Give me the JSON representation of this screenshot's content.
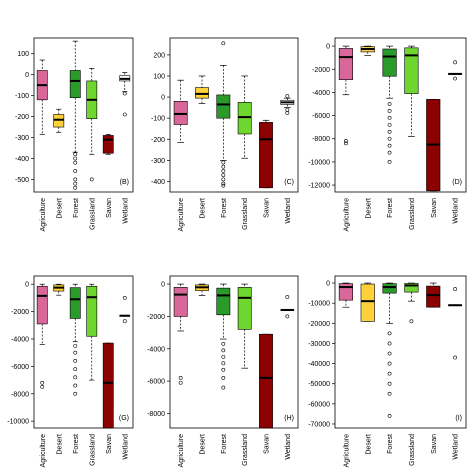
{
  "chart_data": [
    {
      "type": "boxplot",
      "label": "(B)",
      "categories": [
        "Agriculture",
        "Desert",
        "Forest",
        "Grassland",
        "Savan",
        "Wetland"
      ],
      "yticks": [
        100,
        0,
        -100,
        -200,
        -300,
        -400,
        -500
      ],
      "ylim": [
        -560,
        175
      ],
      "colors": [
        "#d9679a",
        "#ffd23a",
        "#2a9a2a",
        "#6ed62e",
        "#8b0000",
        "#ffffff"
      ],
      "series": [
        {
          "name": "Agriculture",
          "q1": -120,
          "median": -50,
          "q3": 20,
          "lo": -285,
          "hi": 70,
          "outliers": []
        },
        {
          "name": "Desert",
          "q1": -250,
          "median": -215,
          "q3": -190,
          "lo": -275,
          "hi": -165,
          "outliers": []
        },
        {
          "name": "Forest",
          "q1": -110,
          "median": -30,
          "q3": 20,
          "lo": -370,
          "hi": 160,
          "outliers": [
            -380,
            -400,
            -420,
            -460,
            -500,
            -520,
            -540
          ]
        },
        {
          "name": "Grassland",
          "q1": -210,
          "median": -120,
          "q3": -30,
          "lo": -380,
          "hi": 30,
          "outliers": [
            -500
          ]
        },
        {
          "name": "Savan",
          "q1": -375,
          "median": -310,
          "q3": -290,
          "lo": -380,
          "hi": -285,
          "outliers": []
        },
        {
          "name": "Wetland",
          "q1": -30,
          "median": -20,
          "q3": -5,
          "lo": -80,
          "hi": 10,
          "outliers": [
            -90,
            -190
          ]
        }
      ]
    },
    {
      "type": "boxplot",
      "label": "(C)",
      "categories": [
        "Agriculture",
        "Desert",
        "Forest",
        "Grassland",
        "Savan",
        "Wetland"
      ],
      "yticks": [
        200,
        100,
        0,
        -100,
        -200,
        -300,
        -400
      ],
      "ylim": [
        -450,
        280
      ],
      "colors": [
        "#d9679a",
        "#ffd23a",
        "#2a9a2a",
        "#6ed62e",
        "#8b0000",
        "#ffffff"
      ],
      "series": [
        {
          "name": "Agriculture",
          "q1": -130,
          "median": -80,
          "q3": -20,
          "lo": -215,
          "hi": 80,
          "outliers": []
        },
        {
          "name": "Desert",
          "q1": -5,
          "median": 15,
          "q3": 45,
          "lo": -30,
          "hi": 100,
          "outliers": []
        },
        {
          "name": "Forest",
          "q1": -100,
          "median": -35,
          "q3": 10,
          "lo": -300,
          "hi": 150,
          "outliers": [
            -310,
            -330,
            -350,
            -370,
            -390,
            -410,
            -420,
            255
          ]
        },
        {
          "name": "Grassland",
          "q1": -175,
          "median": -95,
          "q3": -25,
          "lo": -290,
          "hi": 100,
          "outliers": []
        },
        {
          "name": "Savan",
          "q1": -430,
          "median": -200,
          "q3": -120,
          "lo": -430,
          "hi": -110,
          "outliers": []
        },
        {
          "name": "Wetland",
          "q1": -35,
          "median": -25,
          "q3": -15,
          "lo": -50,
          "hi": -5,
          "outliers": [
            -60,
            -75,
            5
          ]
        }
      ]
    },
    {
      "type": "boxplot",
      "label": "(D)",
      "categories": [
        "Agriculture",
        "Desert",
        "Forest",
        "Grassland",
        "Savan",
        "Wetland"
      ],
      "yticks": [
        0,
        -2000,
        -4000,
        -6000,
        -8000,
        -10000,
        -12000
      ],
      "ylim": [
        -12600,
        700
      ],
      "colors": [
        "#d9679a",
        "#ffd23a",
        "#2a9a2a",
        "#6ed62e",
        "#8b0000",
        "#ffffff"
      ],
      "series": [
        {
          "name": "Agriculture",
          "q1": -2900,
          "median": -950,
          "q3": -200,
          "lo": -4200,
          "hi": 0,
          "outliers": [
            -8200,
            -8400
          ]
        },
        {
          "name": "Desert",
          "q1": -500,
          "median": -250,
          "q3": -50,
          "lo": -800,
          "hi": 0,
          "outliers": []
        },
        {
          "name": "Forest",
          "q1": -2600,
          "median": -900,
          "q3": -250,
          "lo": -4500,
          "hi": 0,
          "outliers": [
            -5000,
            -5600,
            -6200,
            -6800,
            -7400,
            -8000,
            -8600,
            -9200,
            -10000
          ]
        },
        {
          "name": "Grassland",
          "q1": -4100,
          "median": -800,
          "q3": -150,
          "lo": -7800,
          "hi": 0,
          "outliers": []
        },
        {
          "name": "Savan",
          "q1": -12500,
          "median": -8500,
          "q3": -4600,
          "lo": -12500,
          "hi": -4600,
          "outliers": []
        },
        {
          "name": "Wetland",
          "q1": -2400,
          "median": -2400,
          "q3": -2400,
          "lo": -2400,
          "hi": -2400,
          "outliers": [
            -1400,
            -2800
          ]
        }
      ]
    },
    {
      "type": "boxplot",
      "label": "(G)",
      "categories": [
        "Agriculture",
        "Desert",
        "Forest",
        "Grassland",
        "Savan",
        "Wetland"
      ],
      "yticks": [
        0,
        -2000,
        -4000,
        -6000,
        -8000,
        -10000
      ],
      "ylim": [
        -10500,
        600
      ],
      "colors": [
        "#d9679a",
        "#ffd23a",
        "#2a9a2a",
        "#6ed62e",
        "#8b0000",
        "#ffffff"
      ],
      "series": [
        {
          "name": "Agriculture",
          "q1": -2900,
          "median": -850,
          "q3": -150,
          "lo": -4400,
          "hi": 0,
          "outliers": [
            -7200,
            -7500
          ]
        },
        {
          "name": "Desert",
          "q1": -500,
          "median": -250,
          "q3": -50,
          "lo": -800,
          "hi": 0,
          "outliers": []
        },
        {
          "name": "Forest",
          "q1": -2500,
          "median": -1100,
          "q3": -250,
          "lo": -4200,
          "hi": 0,
          "outliers": [
            -4500,
            -5000,
            -5600,
            -6200,
            -6800,
            -7400,
            -8000
          ]
        },
        {
          "name": "Grassland",
          "q1": -3800,
          "median": -950,
          "q3": -150,
          "lo": -7000,
          "hi": 0,
          "outliers": []
        },
        {
          "name": "Savan",
          "q1": -10500,
          "median": -7200,
          "q3": -4300,
          "lo": -10500,
          "hi": -4300,
          "outliers": []
        },
        {
          "name": "Wetland",
          "q1": -2300,
          "median": -2300,
          "q3": -2300,
          "lo": -2300,
          "hi": -2300,
          "outliers": [
            -1000,
            -2700
          ]
        }
      ]
    },
    {
      "type": "boxplot",
      "label": "(H)",
      "categories": [
        "Agriculture",
        "Desert",
        "Forest",
        "Grassland",
        "Savan",
        "Wetland"
      ],
      "yticks": [
        0,
        -2000,
        -4000,
        -6000,
        -8000
      ],
      "ylim": [
        -8900,
        500
      ],
      "colors": [
        "#d9679a",
        "#ffd23a",
        "#2a9a2a",
        "#6ed62e",
        "#8b0000",
        "#ffffff"
      ],
      "series": [
        {
          "name": "Agriculture",
          "q1": -2000,
          "median": -650,
          "q3": -200,
          "lo": -2900,
          "hi": 0,
          "outliers": [
            -5800,
            -6100
          ]
        },
        {
          "name": "Desert",
          "q1": -400,
          "median": -200,
          "q3": -50,
          "lo": -700,
          "hi": 0,
          "outliers": []
        },
        {
          "name": "Forest",
          "q1": -1900,
          "median": -700,
          "q3": -250,
          "lo": -3400,
          "hi": 0,
          "outliers": [
            -3700,
            -4100,
            -4500,
            -4900,
            -5300,
            -5800,
            -6400
          ]
        },
        {
          "name": "Grassland",
          "q1": -2800,
          "median": -850,
          "q3": -200,
          "lo": -5200,
          "hi": 0,
          "outliers": []
        },
        {
          "name": "Savan",
          "q1": -8900,
          "median": -5800,
          "q3": -3100,
          "lo": -8900,
          "hi": -3100,
          "outliers": []
        },
        {
          "name": "Wetland",
          "q1": -1600,
          "median": -1600,
          "q3": -1600,
          "lo": -1600,
          "hi": -1600,
          "outliers": [
            -800,
            -2000
          ]
        }
      ]
    },
    {
      "type": "boxplot",
      "label": "(I)",
      "categories": [
        "Agriculture",
        "Desert",
        "Forest",
        "Grassland",
        "Savan",
        "Wetland"
      ],
      "yticks": [
        0,
        -10000,
        -20000,
        -30000,
        -40000,
        -50000,
        -60000,
        -70000
      ],
      "ylim": [
        -72000,
        3500
      ],
      "colors": [
        "#d9679a",
        "#ffd23a",
        "#2a9a2a",
        "#6ed62e",
        "#8b0000",
        "#ffffff"
      ],
      "series": [
        {
          "name": "Agriculture",
          "q1": -8500,
          "median": -2000,
          "q3": -300,
          "lo": -12000,
          "hi": 0,
          "outliers": []
        },
        {
          "name": "Desert",
          "q1": -19000,
          "median": -9000,
          "q3": -500,
          "lo": -19000,
          "hi": 0,
          "outliers": []
        },
        {
          "name": "Forest",
          "q1": -5000,
          "median": -2000,
          "q3": -300,
          "lo": -20000,
          "hi": 0,
          "outliers": [
            -25000,
            -30000,
            -35000,
            -40000,
            -45000,
            -50000,
            -55000,
            -66000
          ]
        },
        {
          "name": "Grassland",
          "q1": -4500,
          "median": -1200,
          "q3": -200,
          "lo": -9000,
          "hi": 0,
          "outliers": [
            -19000
          ]
        },
        {
          "name": "Savan",
          "q1": -12000,
          "median": -6000,
          "q3": -1500,
          "lo": -12000,
          "hi": 0,
          "outliers": []
        },
        {
          "name": "Wetland",
          "q1": -11000,
          "median": -11000,
          "q3": -11000,
          "lo": -11000,
          "hi": -11000,
          "outliers": [
            -3000,
            -37000
          ]
        }
      ]
    }
  ]
}
